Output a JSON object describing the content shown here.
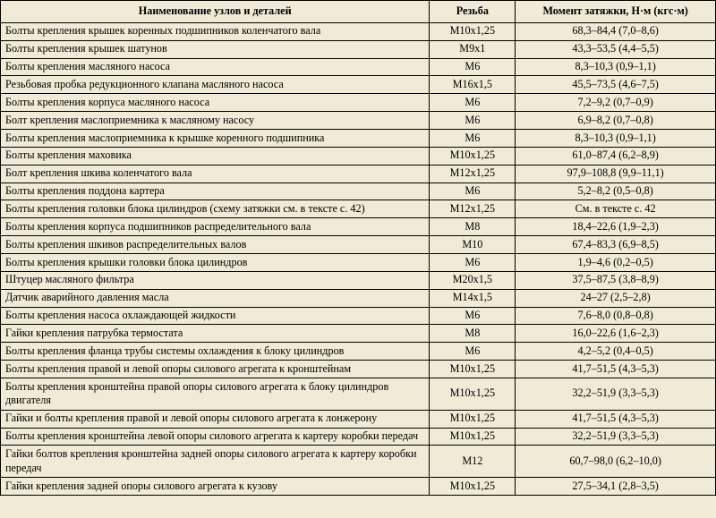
{
  "headers": {
    "name": "Наименование узлов и деталей",
    "thread": "Резьба",
    "torque": "Момент затяжки, Н·м (кгс·м)"
  },
  "rows": [
    {
      "name": "Болты крепления крышек коренных подшипников коленчатого вала",
      "thread": "М10х1,25",
      "torque": "68,3–84,4 (7,0–8,6)"
    },
    {
      "name": "Болты крепления крышек шатунов",
      "thread": "М9х1",
      "torque": "43,3–53,5 (4,4–5,5)"
    },
    {
      "name": "Болты крепления масляного насоса",
      "thread": "М6",
      "torque": "8,3–10,3 (0,9–1,1)"
    },
    {
      "name": "Резьбовая пробка редукционного клапана масляного насоса",
      "thread": "М16х1,5",
      "torque": "45,5–73,5 (4,6–7,5)"
    },
    {
      "name": "Болты крепления корпуса масляного насоса",
      "thread": "М6",
      "torque": "7,2–9,2 (0,7–0,9)"
    },
    {
      "name": "Болт крепления маслоприемника к масляному насосу",
      "thread": "М6",
      "torque": "6,9–8,2 (0,7–0,8)"
    },
    {
      "name": "Болты крепления маслоприемника к крышке коренного подшипника",
      "thread": "М6",
      "torque": "8,3–10,3 (0,9–1,1)"
    },
    {
      "name": "Болты крепления маховика",
      "thread": "М10х1,25",
      "torque": "61,0–87,4 (6,2–8,9)"
    },
    {
      "name": "Болт крепления шкива коленчатого вала",
      "thread": "М12х1,25",
      "torque": "97,9–108,8 (9,9–11,1)"
    },
    {
      "name": "Болты крепления поддона картера",
      "thread": "М6",
      "torque": "5,2–8,2 (0,5–0,8)"
    },
    {
      "name": "Болты крепления головки блока цилиндров (схему затяжки см. в тексте с. 42)",
      "thread": "М12х1,25",
      "torque": "См. в тексте с. 42"
    },
    {
      "name": "Болты крепления корпуса подшипников распределительного вала",
      "thread": "М8",
      "torque": "18,4–22,6 (1,9–2,3)"
    },
    {
      "name": "Болты крепления шкивов распределительных валов",
      "thread": "М10",
      "torque": "67,4–83,3 (6,9–8,5)"
    },
    {
      "name": "Болты крепления крышки головки блока цилиндров",
      "thread": "М6",
      "torque": "1,9–4,6 (0,2–0,5)"
    },
    {
      "name": "Штуцер масляного фильтра",
      "thread": "М20х1,5",
      "torque": "37,5–87,5 (3,8–8,9)"
    },
    {
      "name": "Датчик аварийного давления масла",
      "thread": "М14х1,5",
      "torque": "24–27 (2,5–2,8)"
    },
    {
      "name": "Болты крепления насоса охлаждающей жидкости",
      "thread": "М6",
      "torque": "7,6–8,0 (0,8–0,8)"
    },
    {
      "name": "Гайки крепления патрубка термостата",
      "thread": "М8",
      "torque": "16,0–22,6 (1,6–2,3)"
    },
    {
      "name": "Болты крепления фланца трубы системы охлаждения к блоку цилиндров",
      "thread": "М6",
      "torque": "4,2–5,2 (0,4–0,5)"
    },
    {
      "name": "Болты крепления правой и левой опоры силового агрегата к кронштейнам",
      "thread": "М10х1,25",
      "torque": "41,7–51,5 (4,3–5,3)"
    },
    {
      "name": "Болты крепления кронштейна правой опоры силового агрегата к блоку цилиндров двигателя",
      "thread": "М10х1,25",
      "torque": "32,2–51,9 (3,3–5,3)"
    },
    {
      "name": "Гайки и болты крепления правой и левой опоры силового агрегата к лонжерону",
      "thread": "М10х1,25",
      "torque": "41,7–51,5 (4,3–5,3)"
    },
    {
      "name": "Болты крепления кронштейна левой опоры силового агрегата к картеру коробки передач",
      "thread": "М10х1,25",
      "torque": "32,2–51,9 (3,3–5,3)"
    },
    {
      "name": "Гайки болтов крепления кронштейна задней опоры силового агрегата к картеру коробки передач",
      "thread": "М12",
      "torque": "60,7–98,0 (6,2–10,0)"
    },
    {
      "name": "Гайки крепления задней опоры силового агрегата к кузову",
      "thread": "М10х1,25",
      "torque": "27,5–34,1 (2,8–3,5)"
    }
  ]
}
